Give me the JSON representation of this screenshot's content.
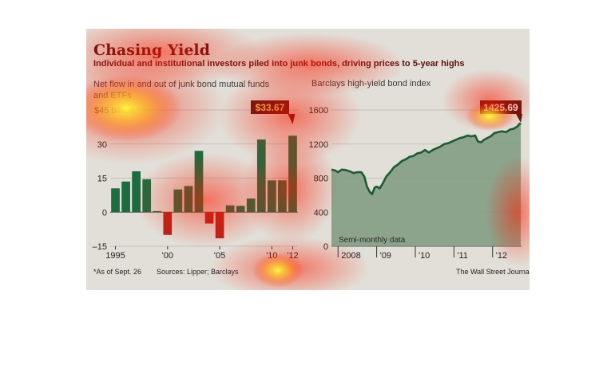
{
  "header": {
    "title": "Chasing Yield",
    "subtitle": "Individual and institutional investors piled into junk bonds, driving prices to 5-year highs"
  },
  "colors": {
    "positive_bar": "#1d6b40",
    "negative_bar": "#b3231b",
    "index_line": "#1e5a33",
    "index_area": "#7d9a7f",
    "callout_bg": "#5a1410",
    "callout_text": "#f3c86b"
  },
  "footer": {
    "note": "*As of Sept. 26",
    "sources": "Sources: Lipper; Barclays",
    "credit": "The Wall Street Journal"
  },
  "chart_data": [
    {
      "type": "bar",
      "title": "Net flow in and out of junk bond mutual funds and ETFs",
      "y_unit_label": "$45 billion",
      "x": [
        1995,
        1996,
        1997,
        1998,
        1999,
        2000,
        2001,
        2002,
        2003,
        2004,
        2005,
        2006,
        2007,
        2008,
        2009,
        2010,
        2011,
        2012
      ],
      "values": [
        10.5,
        13.5,
        18,
        14.5,
        0.5,
        -10,
        10,
        11.5,
        27,
        -5,
        -11.5,
        3,
        2.8,
        6,
        32,
        14,
        14,
        33.67
      ],
      "ylim": [
        -15,
        45
      ],
      "yticks": [
        "45",
        "30",
        "15",
        "0",
        "–15"
      ],
      "xticks": [
        "1995",
        "'00",
        "'05",
        "'10",
        "'12"
      ],
      "callout": "$33.67",
      "grid": true
    },
    {
      "type": "area",
      "title": "Barclays high-yield bond index",
      "annotation": "Semi-monthly data",
      "ylim": [
        0,
        1600
      ],
      "yticks": [
        "1600",
        "1200",
        "800",
        "400",
        "0"
      ],
      "xticks": [
        "2008",
        "'09",
        "'10",
        "'11",
        "'12"
      ],
      "callout": "1425.69",
      "grid": true,
      "series": [
        {
          "x": [
            2007.83,
            2007.92,
            2008.0,
            2008.1,
            2008.2,
            2008.3,
            2008.4,
            2008.5,
            2008.6,
            2008.68,
            2008.75,
            2008.82,
            2008.88,
            2008.95,
            2009.0,
            2009.08,
            2009.16,
            2009.25,
            2009.35,
            2009.45,
            2009.55,
            2009.65,
            2009.75,
            2009.85,
            2009.95,
            2010.05,
            2010.15,
            2010.25,
            2010.35,
            2010.45,
            2010.55,
            2010.65,
            2010.75,
            2010.85,
            2010.95,
            2011.05,
            2011.15,
            2011.25,
            2011.35,
            2011.45,
            2011.55,
            2011.62,
            2011.7,
            2011.78,
            2011.86,
            2011.95,
            2012.05,
            2012.15,
            2012.25,
            2012.35,
            2012.45,
            2012.55,
            2012.65,
            2012.7,
            2012.73
          ],
          "values": [
            900,
            890,
            870,
            900,
            895,
            880,
            860,
            870,
            870,
            820,
            700,
            640,
            610,
            690,
            700,
            680,
            740,
            820,
            870,
            930,
            960,
            1000,
            1020,
            1050,
            1060,
            1090,
            1100,
            1130,
            1100,
            1130,
            1150,
            1170,
            1200,
            1210,
            1230,
            1250,
            1270,
            1280,
            1300,
            1290,
            1300,
            1230,
            1220,
            1250,
            1270,
            1290,
            1330,
            1340,
            1350,
            1340,
            1370,
            1380,
            1410,
            1440,
            1425.69
          ]
        }
      ]
    }
  ]
}
